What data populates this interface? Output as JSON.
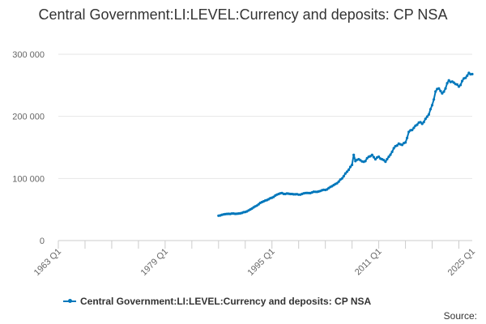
{
  "chart_data": {
    "type": "line",
    "title": "Central Government:LI:LEVEL:Currency and deposits: CP NSA",
    "xlabel": "",
    "ylabel": "",
    "x_ticks": [
      "1963 Q1",
      "1979 Q1",
      "1995 Q1",
      "2011 Q1",
      "2025 Q1"
    ],
    "y_ticks": [
      "0",
      "100 000",
      "200 000",
      "300 000"
    ],
    "ylim": [
      0,
      300000
    ],
    "xlim": [
      "1963 Q1",
      "2025 Q1"
    ],
    "grid": "horizontal",
    "legend_position": "bottom",
    "series": [
      {
        "name": "Central Government:LI:LEVEL:Currency and deposits: CP NSA",
        "color": "#0077bb",
        "points": [
          [
            "1987 Q1",
            40000
          ],
          [
            "1987 Q3",
            41500
          ],
          [
            "1988 Q1",
            42500
          ],
          [
            "1988 Q3",
            43000
          ],
          [
            "1989 Q1",
            43500
          ],
          [
            "1989 Q3",
            43000
          ],
          [
            "1990 Q1",
            43500
          ],
          [
            "1990 Q3",
            44500
          ],
          [
            "1991 Q1",
            46000
          ],
          [
            "1991 Q3",
            48500
          ],
          [
            "1992 Q1",
            51500
          ],
          [
            "1992 Q3",
            55000
          ],
          [
            "1993 Q1",
            58500
          ],
          [
            "1993 Q3",
            62000
          ],
          [
            "1994 Q1",
            64500
          ],
          [
            "1994 Q3",
            66500
          ],
          [
            "1995 Q1",
            69000
          ],
          [
            "1995 Q3",
            72500
          ],
          [
            "1996 Q1",
            75000
          ],
          [
            "1996 Q3",
            76500
          ],
          [
            "1997 Q1",
            75000
          ],
          [
            "1997 Q3",
            75500
          ],
          [
            "1998 Q1",
            75000
          ],
          [
            "1998 Q3",
            74500
          ],
          [
            "1999 Q1",
            74000
          ],
          [
            "1999 Q3",
            75000
          ],
          [
            "2000 Q1",
            76500
          ],
          [
            "2000 Q3",
            76500
          ],
          [
            "2001 Q1",
            77500
          ],
          [
            "2001 Q3",
            78500
          ],
          [
            "2002 Q1",
            79000
          ],
          [
            "2002 Q3",
            81000
          ],
          [
            "2003 Q1",
            81500
          ],
          [
            "2003 Q3",
            84500
          ],
          [
            "2004 Q1",
            87500
          ],
          [
            "2004 Q3",
            91000
          ],
          [
            "2005 Q1",
            95000
          ],
          [
            "2005 Q3",
            100000
          ],
          [
            "2006 Q1",
            108000
          ],
          [
            "2006 Q3",
            114000
          ],
          [
            "2007 Q1",
            122000
          ],
          [
            "2007 Q2",
            138000
          ],
          [
            "2007 Q3",
            128000
          ],
          [
            "2008 Q1",
            131000
          ],
          [
            "2008 Q3",
            127500
          ],
          [
            "2009 Q1",
            128000
          ],
          [
            "2009 Q3",
            135000
          ],
          [
            "2010 Q1",
            138000
          ],
          [
            "2010 Q3",
            131000
          ],
          [
            "2011 Q1",
            135000
          ],
          [
            "2011 Q3",
            131000
          ],
          [
            "2012 Q1",
            127000
          ],
          [
            "2012 Q3",
            135000
          ],
          [
            "2013 Q1",
            143000
          ],
          [
            "2013 Q3",
            152000
          ],
          [
            "2014 Q1",
            156000
          ],
          [
            "2014 Q3",
            154000
          ],
          [
            "2015 Q1",
            158000
          ],
          [
            "2015 Q3",
            175000
          ],
          [
            "2016 Q1",
            178000
          ],
          [
            "2016 Q3",
            185000
          ],
          [
            "2017 Q1",
            190000
          ],
          [
            "2017 Q3",
            188000
          ],
          [
            "2018 Q1",
            196000
          ],
          [
            "2018 Q3",
            203000
          ],
          [
            "2019 Q1",
            218000
          ],
          [
            "2019 Q3",
            240000
          ],
          [
            "2020 Q1",
            245000
          ],
          [
            "2020 Q3",
            237000
          ],
          [
            "2021 Q1",
            245000
          ],
          [
            "2021 Q3",
            258000
          ],
          [
            "2022 Q1",
            256000
          ],
          [
            "2022 Q3",
            252000
          ],
          [
            "2023 Q1",
            248000
          ],
          [
            "2023 Q3",
            257000
          ],
          [
            "2024 Q1",
            262000
          ],
          [
            "2024 Q3",
            270000
          ],
          [
            "2025 Q1",
            268000
          ]
        ]
      }
    ],
    "source_label": "Source:"
  }
}
